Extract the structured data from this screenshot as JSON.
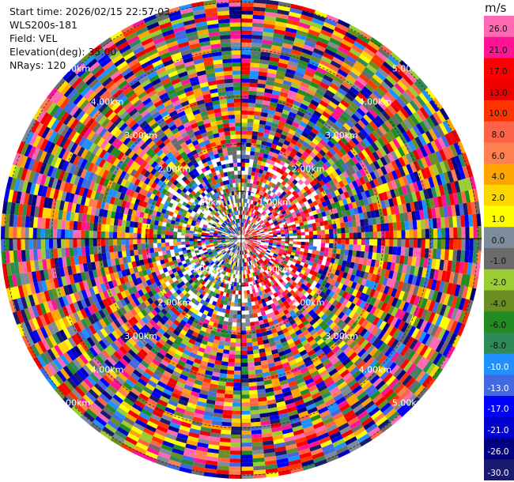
{
  "header": {
    "start_time": "Start time: 2026/02/15 22:57:03",
    "site": "WLS200s-181",
    "field": "Field: VEL",
    "elevation": "Elevation(deg): 35.00",
    "nrays": "NRays: 120"
  },
  "colorbar": {
    "unit": "m/s",
    "ticks": [
      "26.0",
      "21.0",
      "17.0",
      "13.0",
      "10.0",
      "8.0",
      "6.0",
      "4.0",
      "2.0",
      "1.0",
      "0.0",
      "-1.0",
      "-2.0",
      "-4.0",
      "-6.0",
      "-8.0",
      "-10.0",
      "-13.0",
      "-17.0",
      "-21.0",
      "-26.0",
      "-30.0"
    ],
    "colors": [
      "#ff69b4",
      "#ff1493",
      "#ff0000",
      "#ee0000",
      "#ff3300",
      "#ff6347",
      "#ff7f50",
      "#ffa500",
      "#ffd700",
      "#ffff00",
      "#7d8b9a",
      "#6b6b6b",
      "#9acd32",
      "#6b8e23",
      "#228b22",
      "#2e8b57",
      "#1e90ff",
      "#4169e1",
      "#0000ff",
      "#0000cd",
      "#000080",
      "#191970"
    ]
  },
  "chart_data": {
    "type": "heatmap",
    "projection": "polar-ppi",
    "field": "VEL",
    "n_rays": 120,
    "range_rings_km": [
      "1.00km",
      "2.00km",
      "3.00km",
      "4.00km",
      "5.00km"
    ],
    "max_range_km": 5.0,
    "colorbar_range": [
      -30.0,
      26.0
    ],
    "grid": true
  }
}
